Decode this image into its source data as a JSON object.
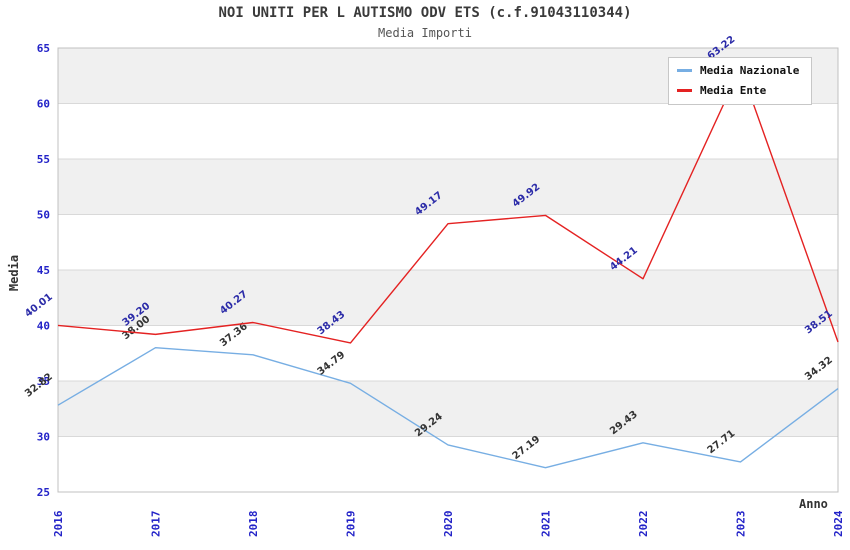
{
  "chart_data": {
    "type": "line",
    "title": "NOI UNITI PER L AUTISMO ODV ETS (c.f.91043110344)",
    "subtitle": "Media Importi",
    "xlabel": "Anno",
    "ylabel": "Media",
    "x": [
      "2016",
      "2017",
      "2018",
      "2019",
      "2020",
      "2021",
      "2022",
      "2023",
      "2024"
    ],
    "series": [
      {
        "name": "Media Nazionale",
        "color": "#77aee3",
        "label_color": "#333333",
        "values": [
          32.82,
          38.0,
          37.36,
          34.79,
          29.24,
          27.19,
          29.43,
          27.71,
          34.32
        ]
      },
      {
        "name": "Media Ente",
        "color": "#e42222",
        "label_color": "#2b2ba8",
        "values": [
          40.01,
          39.2,
          40.27,
          38.43,
          49.17,
          49.92,
          44.21,
          63.22,
          38.51
        ]
      }
    ],
    "ylim": [
      25,
      65
    ],
    "yticks": [
      25,
      30,
      35,
      40,
      45,
      50,
      55,
      60,
      65
    ],
    "tick_color": "#2323c8",
    "grid": "horizontal",
    "gridline_color": "#d9d9d9",
    "plot_border_color": "#c0c0c0",
    "band_colors": [
      "#ffffff",
      "#f0f0f0"
    ],
    "legend_position": "top-right"
  }
}
